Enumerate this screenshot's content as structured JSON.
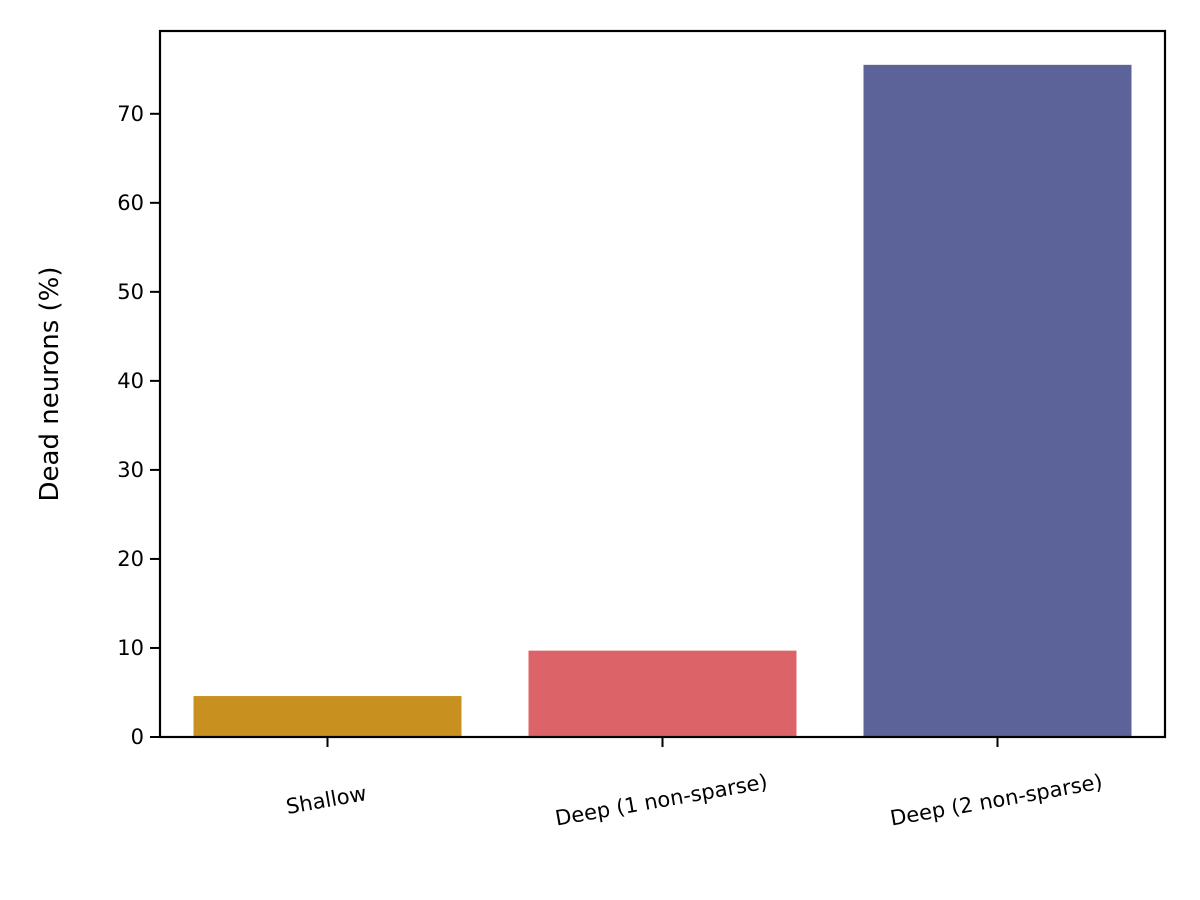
{
  "chart_data": {
    "type": "bar",
    "title": "",
    "xlabel": "",
    "ylabel": "Dead neurons (%)",
    "categories": [
      "Shallow",
      "Deep (1 non-sparse)",
      "Deep (2 non-sparse)"
    ],
    "values": [
      4.6,
      9.7,
      75.5
    ],
    "colors": [
      "#c8901e",
      "#dc6468",
      "#5c6399"
    ],
    "ylim": [
      0,
      79.3
    ],
    "yticks": [
      0,
      10,
      20,
      30,
      40,
      50,
      60,
      70
    ],
    "ytick_labels": [
      "0",
      "10",
      "20",
      "30",
      "40",
      "50",
      "60",
      "70"
    ],
    "grid": false,
    "legend": false
  }
}
